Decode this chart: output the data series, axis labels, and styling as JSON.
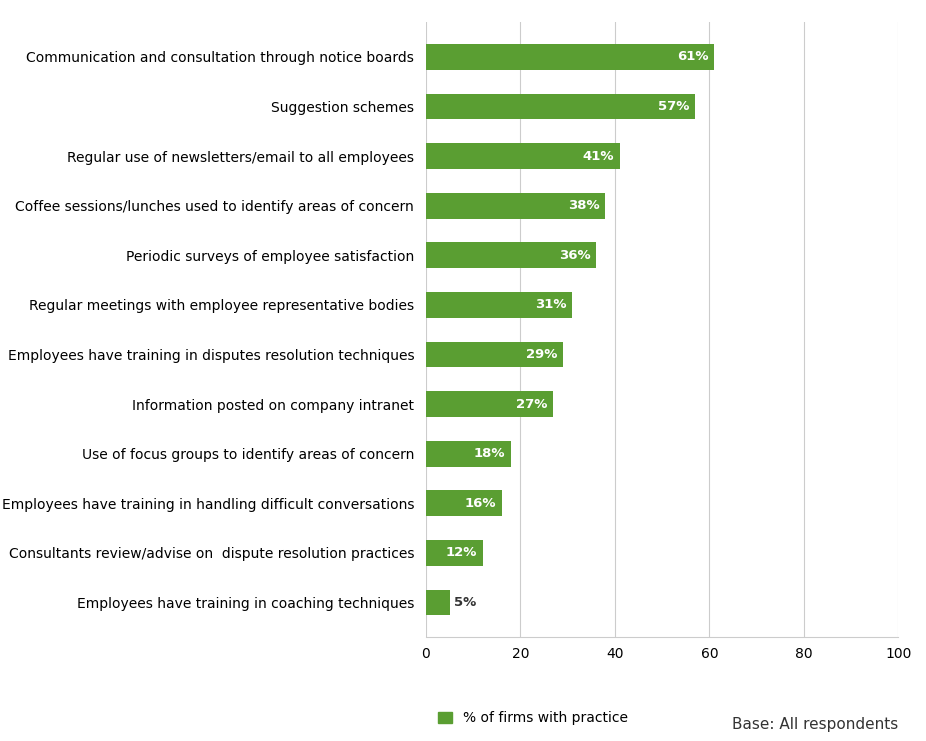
{
  "categories": [
    "Employees have training in coaching techniques",
    "Consultants review/advise on  dispute resolution practices",
    "Employees have training in handling difficult conversations",
    "Use of focus groups to identify areas of concern",
    "Information posted on company intranet",
    "Employees have training in disputes resolution techniques",
    "Regular meetings with employee representative bodies",
    "Periodic surveys of employee satisfaction",
    "Coffee sessions/lunches used to identify areas of concern",
    "Regular use of newsletters/email to all employees",
    "Suggestion schemes",
    "Communication and consultation through notice boards"
  ],
  "values": [
    5,
    12,
    16,
    18,
    27,
    29,
    31,
    36,
    38,
    41,
    57,
    61
  ],
  "bar_color": "#5a9e32",
  "label_color_inside": "#ffffff",
  "label_color_outside": "#333333",
  "outside_threshold": 8,
  "legend_label": "% of firms with practice",
  "base_text": "Base: All respondents",
  "xlim": [
    0,
    100
  ],
  "xticks": [
    0,
    20,
    40,
    60,
    80,
    100
  ],
  "bar_height": 0.52,
  "label_fontsize": 9.5,
  "tick_fontsize": 10,
  "legend_fontsize": 10,
  "base_fontsize": 11,
  "background_color": "#ffffff",
  "grid_color": "#cccccc"
}
